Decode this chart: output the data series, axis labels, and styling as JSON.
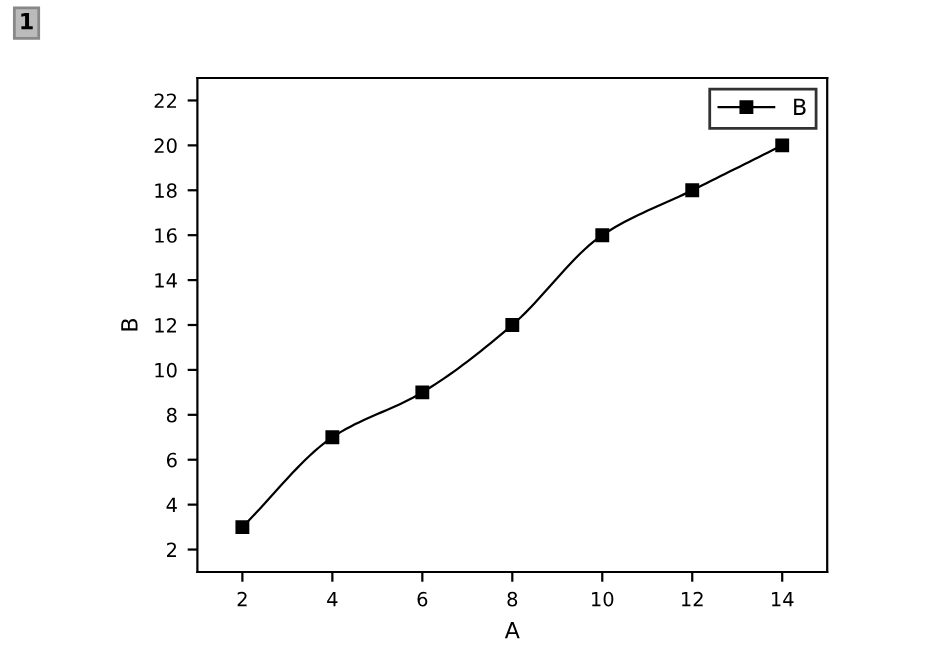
{
  "chart_data": {
    "type": "line",
    "xlabel": "A",
    "ylabel": "B",
    "x": [
      2,
      4,
      6,
      8,
      10,
      12,
      14
    ],
    "series": [
      {
        "name": "B",
        "color": "#000000",
        "values": [
          3,
          7,
          9,
          12,
          16,
          18,
          20
        ]
      }
    ],
    "xlim": [
      1,
      15
    ],
    "xticks": [
      2,
      4,
      6,
      8,
      10,
      12,
      14
    ],
    "ylim": [
      1,
      23
    ],
    "yticks": [
      2,
      4,
      6,
      8,
      10,
      12,
      14,
      16,
      18,
      20,
      22
    ],
    "marker": "square",
    "line_style": "solid",
    "legend": "top right",
    "grid": false,
    "annotations": [
      "1"
    ]
  }
}
